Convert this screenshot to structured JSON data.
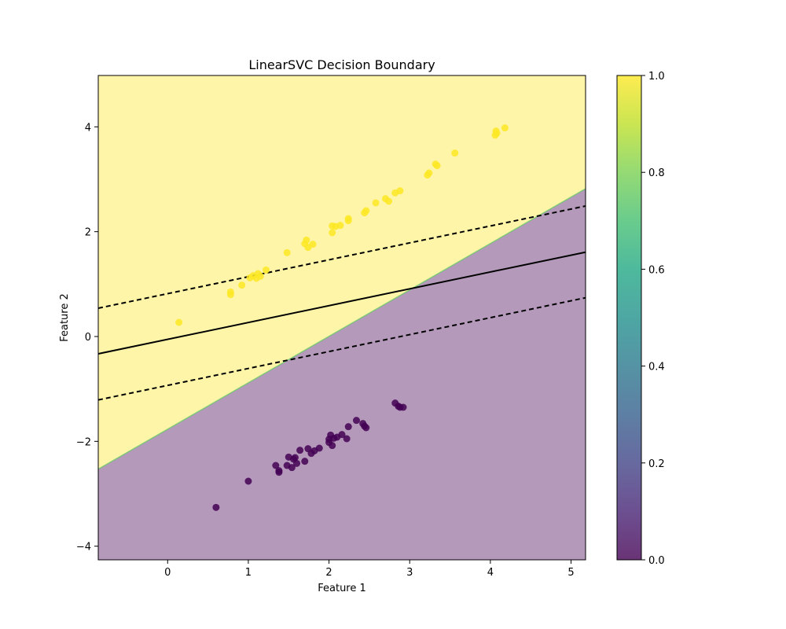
{
  "chart_data": {
    "type": "scatter",
    "title": "LinearSVC Decision Boundary",
    "xlabel": "Feature 1",
    "ylabel": "Feature 2",
    "xlim": [
      -0.86,
      5.18
    ],
    "ylim": [
      -4.26,
      4.98
    ],
    "xticks": [
      0,
      1,
      2,
      3,
      4,
      5
    ],
    "yticks": [
      -4,
      -2,
      0,
      2,
      4
    ],
    "region_colors": {
      "class_0": "#440154",
      "class_1": "#fde725",
      "boundary": "#5ec962"
    },
    "region_alpha": 0.4,
    "region_boundary": {
      "x": [
        -0.86,
        5.18
      ],
      "y": [
        -2.53,
        2.82
      ]
    },
    "decision_line": {
      "x": [
        -0.86,
        5.18
      ],
      "y": [
        -0.33,
        1.61
      ],
      "style": "solid",
      "color": "#000000"
    },
    "margin_lines": [
      {
        "x": [
          -0.86,
          5.18
        ],
        "y": [
          0.54,
          2.49
        ],
        "style": "dashed",
        "color": "#000000"
      },
      {
        "x": [
          -0.86,
          5.18
        ],
        "y": [
          -1.21,
          0.74
        ],
        "style": "dashed",
        "color": "#000000"
      }
    ],
    "series": [
      {
        "class": 1,
        "color": "#fde725",
        "points": [
          [
            0.14,
            0.27
          ],
          [
            0.78,
            0.85
          ],
          [
            0.78,
            0.8
          ],
          [
            0.92,
            0.98
          ],
          [
            1.02,
            1.12
          ],
          [
            1.06,
            1.16
          ],
          [
            1.1,
            1.11
          ],
          [
            1.12,
            1.2
          ],
          [
            1.15,
            1.15
          ],
          [
            1.22,
            1.27
          ],
          [
            1.48,
            1.6
          ],
          [
            1.7,
            1.77
          ],
          [
            1.72,
            1.84
          ],
          [
            1.74,
            1.7
          ],
          [
            1.8,
            1.76
          ],
          [
            2.04,
            2.11
          ],
          [
            2.04,
            1.98
          ],
          [
            2.08,
            2.1
          ],
          [
            2.14,
            2.12
          ],
          [
            2.24,
            2.21
          ],
          [
            2.24,
            2.25
          ],
          [
            2.44,
            2.36
          ],
          [
            2.46,
            2.4
          ],
          [
            2.58,
            2.55
          ],
          [
            2.7,
            2.63
          ],
          [
            2.74,
            2.58
          ],
          [
            2.82,
            2.74
          ],
          [
            2.88,
            2.78
          ],
          [
            3.22,
            3.08
          ],
          [
            3.24,
            3.12
          ],
          [
            3.32,
            3.29
          ],
          [
            3.34,
            3.26
          ],
          [
            3.56,
            3.5
          ],
          [
            4.06,
            3.84
          ],
          [
            4.07,
            3.92
          ],
          [
            4.08,
            3.88
          ],
          [
            4.18,
            3.98
          ]
        ]
      },
      {
        "class": 0,
        "color": "#440154",
        "points": [
          [
            0.6,
            -3.26
          ],
          [
            1.0,
            -2.76
          ],
          [
            1.34,
            -2.46
          ],
          [
            1.38,
            -2.56
          ],
          [
            1.38,
            -2.59
          ],
          [
            1.48,
            -2.46
          ],
          [
            1.5,
            -2.3
          ],
          [
            1.54,
            -2.5
          ],
          [
            1.56,
            -2.34
          ],
          [
            1.58,
            -2.31
          ],
          [
            1.6,
            -2.42
          ],
          [
            1.64,
            -2.17
          ],
          [
            1.7,
            -2.38
          ],
          [
            1.74,
            -2.14
          ],
          [
            1.78,
            -2.23
          ],
          [
            1.82,
            -2.18
          ],
          [
            1.88,
            -2.13
          ],
          [
            2.0,
            -2.02
          ],
          [
            2.0,
            -1.96
          ],
          [
            2.02,
            -1.88
          ],
          [
            2.04,
            -2.08
          ],
          [
            2.06,
            -1.94
          ],
          [
            2.1,
            -1.92
          ],
          [
            2.16,
            -1.87
          ],
          [
            2.22,
            -1.95
          ],
          [
            2.24,
            -1.72
          ],
          [
            2.34,
            -1.6
          ],
          [
            2.42,
            -1.66
          ],
          [
            2.44,
            -1.71
          ],
          [
            2.46,
            -1.74
          ],
          [
            2.82,
            -1.27
          ],
          [
            2.86,
            -1.33
          ],
          [
            2.88,
            -1.35
          ],
          [
            2.92,
            -1.35
          ]
        ]
      }
    ],
    "colorbar": {
      "cmap": "viridis",
      "range": [
        0.0,
        1.0
      ],
      "ticks": [
        "0.0",
        "0.2",
        "0.4",
        "0.6",
        "0.8",
        "1.0"
      ]
    }
  }
}
